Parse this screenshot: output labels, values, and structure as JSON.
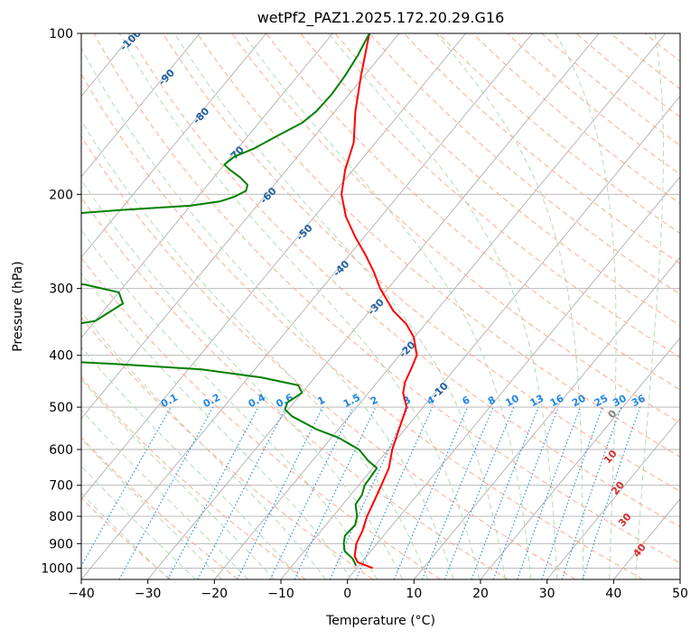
{
  "chart_data": {
    "type": "line",
    "subtype": "skew-t log-p diagram",
    "title": "wetPf2_PAZ1.2025.172.20.29.G16",
    "xlabel": "Temperature (°C)",
    "ylabel": "Pressure (hPa)",
    "xlim": [
      -40,
      50
    ],
    "ylim": [
      1050,
      100
    ],
    "y_scale": "log",
    "x_ticks": [
      -40,
      -30,
      -20,
      -10,
      0,
      10,
      20,
      30,
      40,
      50
    ],
    "y_ticks": [
      100,
      200,
      300,
      400,
      500,
      600,
      700,
      800,
      900,
      1000
    ],
    "grid": true,
    "series": [
      {
        "role": "temperature",
        "color": "#ff0000",
        "points": [
          [
            1000,
            2.4
          ],
          [
            975,
            -0.6
          ],
          [
            950,
            -1.8
          ],
          [
            900,
            -3.1
          ],
          [
            850,
            -3.8
          ],
          [
            800,
            -4.9
          ],
          [
            750,
            -5.7
          ],
          [
            700,
            -6.6
          ],
          [
            650,
            -7.6
          ],
          [
            600,
            -9.4
          ],
          [
            550,
            -10.9
          ],
          [
            500,
            -12.5
          ],
          [
            470,
            -14.8
          ],
          [
            450,
            -15.8
          ],
          [
            420,
            -16.7
          ],
          [
            400,
            -17.4
          ],
          [
            370,
            -20.1
          ],
          [
            350,
            -22.8
          ],
          [
            330,
            -26.5
          ],
          [
            300,
            -31.2
          ],
          [
            280,
            -34.1
          ],
          [
            260,
            -37.5
          ],
          [
            240,
            -41.4
          ],
          [
            220,
            -45.3
          ],
          [
            200,
            -48.7
          ],
          [
            180,
            -51.2
          ],
          [
            160,
            -53.3
          ],
          [
            140,
            -56.9
          ],
          [
            120,
            -60.5
          ],
          [
            100,
            -64.5
          ]
        ]
      },
      {
        "role": "dewpoint",
        "color": "#008000",
        "points": [
          [
            990,
            -0.4
          ],
          [
            960,
            -1.8
          ],
          [
            930,
            -3.9
          ],
          [
            900,
            -5.0
          ],
          [
            870,
            -5.8
          ],
          [
            830,
            -5.6
          ],
          [
            800,
            -6.4
          ],
          [
            760,
            -8.1
          ],
          [
            730,
            -8.3
          ],
          [
            700,
            -9.1
          ],
          [
            650,
            -9.4
          ],
          [
            630,
            -11.6
          ],
          [
            600,
            -14.4
          ],
          [
            570,
            -19.0
          ],
          [
            550,
            -23.3
          ],
          [
            520,
            -28.6
          ],
          [
            505,
            -30.5
          ],
          [
            490,
            -31.0
          ],
          [
            470,
            -30.0
          ],
          [
            455,
            -31.5
          ],
          [
            440,
            -38.0
          ],
          [
            425,
            -48.0
          ],
          [
            415,
            -62.0
          ],
          [
            405,
            -80.0
          ],
          [
            395,
            -88.0
          ],
          [
            380,
            -100.0
          ],
          [
            370,
            -88.0
          ],
          [
            360,
            -78.0
          ],
          [
            345,
            -70.0
          ],
          [
            320,
            -68.0
          ],
          [
            305,
            -70.0
          ],
          [
            295,
            -76.0
          ],
          [
            285,
            -86.0
          ],
          [
            278,
            -100.0
          ],
          [
            250,
            -100.0
          ],
          [
            247,
            -97.0
          ],
          [
            244,
            -100.0
          ],
          [
            235,
            -98.0
          ],
          [
            228,
            -94.0
          ],
          [
            220,
            -92.0
          ],
          [
            214,
            -80.0
          ],
          [
            210,
            -70.0
          ],
          [
            206,
            -66.0
          ],
          [
            202,
            -64.5
          ],
          [
            197,
            -63.5
          ],
          [
            192,
            -64.0
          ],
          [
            186,
            -66.0
          ],
          [
            180,
            -68.5
          ],
          [
            176,
            -70.0
          ],
          [
            170,
            -69.5
          ],
          [
            164,
            -67.5
          ],
          [
            155,
            -65.5
          ],
          [
            147,
            -63.5
          ],
          [
            140,
            -62.8
          ],
          [
            130,
            -62.6
          ],
          [
            120,
            -62.9
          ],
          [
            110,
            -63.5
          ],
          [
            100,
            -64.5
          ]
        ]
      }
    ],
    "dry_adiabat_labels": [
      -100,
      -90,
      -80,
      -70,
      -60,
      -50,
      -40,
      -30,
      -20,
      -10
    ],
    "moist_adiabat_labels": [
      0,
      10,
      20,
      30,
      40
    ],
    "mixing_ratio_labels": [
      "0.1",
      "0.2",
      "0.4",
      "0.6",
      "1",
      "1.5",
      "2",
      "3",
      "4",
      "6",
      "8",
      "10",
      "13",
      "16",
      "20",
      "25",
      "30",
      "36"
    ],
    "mixing_ratio_values": [
      0.1,
      0.2,
      0.4,
      0.6,
      1,
      1.5,
      2,
      3,
      4,
      6,
      8,
      10,
      13,
      16,
      20,
      25,
      30,
      36
    ],
    "colors": {
      "isotherm": "#b0b0b0",
      "isobar": "#b0b0b0",
      "dry_adiabat": "#ffab91",
      "moist_adiabat": "#b5dbb5",
      "mixing_ratio": "#1e88e5",
      "dry_label": "#1f5fa0",
      "moist_label": "#d32f2f",
      "zero_label": "#808080"
    }
  }
}
